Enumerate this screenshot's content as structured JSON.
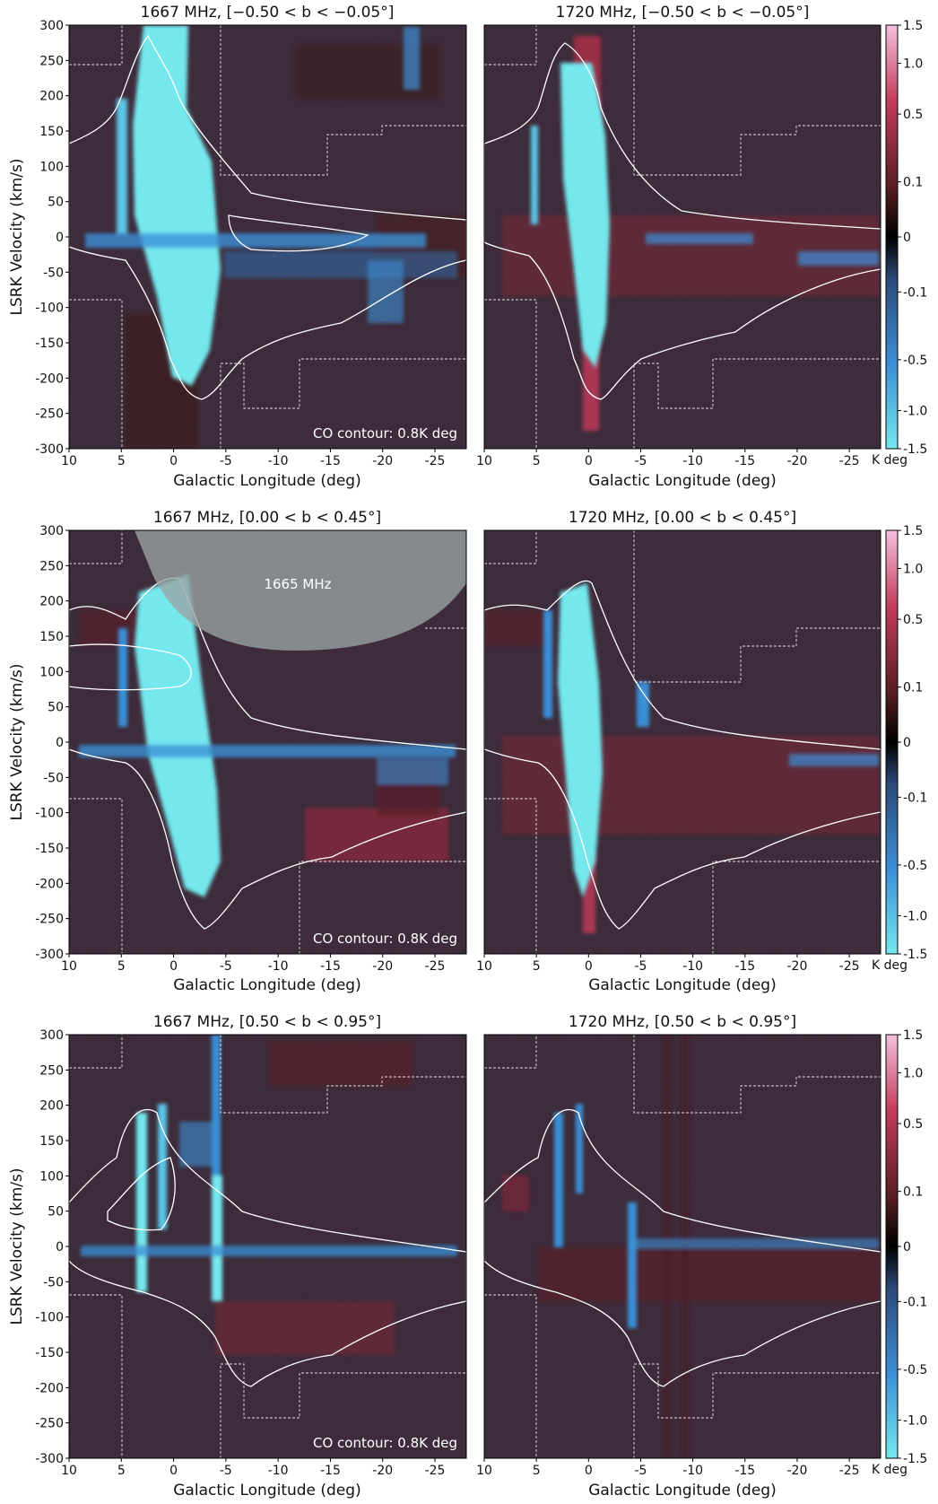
{
  "chart_data": [
    {
      "type": "heatmap",
      "panel": "top-left",
      "title": "1667 MHz, [−0.50 < b < −0.05°]",
      "xlabel": "Galactic Longitude (deg)",
      "ylabel": "LSRK Velocity (km/s)",
      "xlim": [
        10,
        -28
      ],
      "ylim": [
        -300,
        300
      ],
      "xticks": [
        "10",
        "5",
        "0",
        "-5",
        "-10",
        "-15",
        "-20",
        "-25"
      ],
      "yticks": [
        "300",
        "250",
        "200",
        "150",
        "100",
        "50",
        "0",
        "-50",
        "-100",
        "-150",
        "-200",
        "-250",
        "-300"
      ],
      "annotation": "CO contour: 0.8K deg"
    },
    {
      "type": "heatmap",
      "panel": "top-right",
      "title": "1720 MHz, [−0.50 < b < −0.05°]",
      "xlabel": "Galactic Longitude (deg)",
      "xlim": [
        10,
        -28
      ],
      "ylim": [
        -300,
        300
      ],
      "xticks": [
        "10",
        "5",
        "0",
        "-5",
        "-10",
        "-15",
        "-20",
        "-25"
      ]
    },
    {
      "type": "heatmap",
      "panel": "middle-left",
      "title": "1667 MHz, [0.00 < b < 0.45°]",
      "xlabel": "Galactic Longitude (deg)",
      "ylabel": "LSRK Velocity (km/s)",
      "xlim": [
        10,
        -28
      ],
      "ylim": [
        -300,
        300
      ],
      "xticks": [
        "10",
        "5",
        "0",
        "-5",
        "-10",
        "-15",
        "-20",
        "-25"
      ],
      "yticks": [
        "300",
        "250",
        "200",
        "150",
        "100",
        "50",
        "0",
        "-50",
        "-100",
        "-150",
        "-200",
        "-250",
        "-300"
      ],
      "annotation": "CO contour: 0.8K deg",
      "masked_region_label": "1665 MHz"
    },
    {
      "type": "heatmap",
      "panel": "middle-right",
      "title": "1720 MHz, [0.00 < b < 0.45°]",
      "xlabel": "Galactic Longitude (deg)",
      "xlim": [
        10,
        -28
      ],
      "ylim": [
        -300,
        300
      ],
      "xticks": [
        "10",
        "5",
        "0",
        "-5",
        "-10",
        "-15",
        "-20",
        "-25"
      ]
    },
    {
      "type": "heatmap",
      "panel": "bottom-left",
      "title": "1667 MHz, [0.50 < b < 0.95°]",
      "xlabel": "Galactic Longitude (deg)",
      "ylabel": "LSRK Velocity (km/s)",
      "xlim": [
        10,
        -28
      ],
      "ylim": [
        -300,
        300
      ],
      "xticks": [
        "10",
        "5",
        "0",
        "-5",
        "-10",
        "-15",
        "-20",
        "-25"
      ],
      "yticks": [
        "300",
        "250",
        "200",
        "150",
        "100",
        "50",
        "0",
        "-50",
        "-100",
        "-150",
        "-200",
        "-250",
        "-300"
      ],
      "annotation": "CO contour: 0.8K deg"
    },
    {
      "type": "heatmap",
      "panel": "bottom-right",
      "title": "1720 MHz, [0.50 < b < 0.95°]",
      "xlabel": "Galactic Longitude (deg)",
      "xlim": [
        10,
        -28
      ],
      "ylim": [
        -300,
        300
      ],
      "xticks": [
        "10",
        "5",
        "0",
        "-5",
        "-10",
        "-15",
        "-20",
        "-25"
      ]
    }
  ],
  "colorbar": {
    "unit": "K deg",
    "range": [
      -1.5,
      1.5
    ],
    "ticks": [
      "1.5",
      "1.0",
      "0.5",
      "0.1",
      "0",
      "-0.1",
      "-0.5",
      "-1.0",
      "-1.5"
    ],
    "tick_values": [
      1.5,
      1.0,
      0.5,
      0.1,
      0,
      -0.1,
      -0.5,
      -1.0,
      -1.5
    ],
    "colormap": [
      "#74e8ee",
      "#3b8fd6",
      "#2b4a7a",
      "#000000",
      "#5a1f1f",
      "#c43c58",
      "#f5c0e0"
    ]
  },
  "colors": {
    "background": "#1b1820",
    "absorption": "#74e8ee",
    "emission": "#c43c58",
    "contour": "#ffffff"
  }
}
